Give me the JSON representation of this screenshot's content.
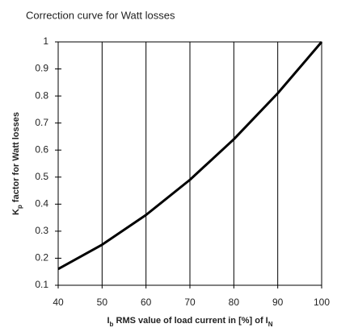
{
  "chart_data": {
    "type": "line",
    "title": "Correction curve for Watt losses",
    "xlabel_parts": [
      "I",
      "b",
      " RMS value of load current in [%] of I",
      "N"
    ],
    "ylabel_parts": [
      "K",
      "p",
      " factor for Watt losses"
    ],
    "x": [
      40,
      50,
      60,
      70,
      80,
      90,
      100
    ],
    "series": [
      {
        "color": "#000000",
        "values": [
          0.16,
          0.25,
          0.36,
          0.49,
          0.64,
          0.81,
          1.0
        ]
      }
    ],
    "xlim": [
      40,
      100
    ],
    "xticks": [
      40,
      50,
      60,
      70,
      80,
      90,
      100
    ],
    "ylim": [
      0.1,
      1
    ],
    "yticks": [
      0.1,
      0.2,
      0.3,
      0.4,
      0.5,
      0.6,
      0.7,
      0.8,
      0.9,
      1
    ],
    "grid": "x"
  }
}
